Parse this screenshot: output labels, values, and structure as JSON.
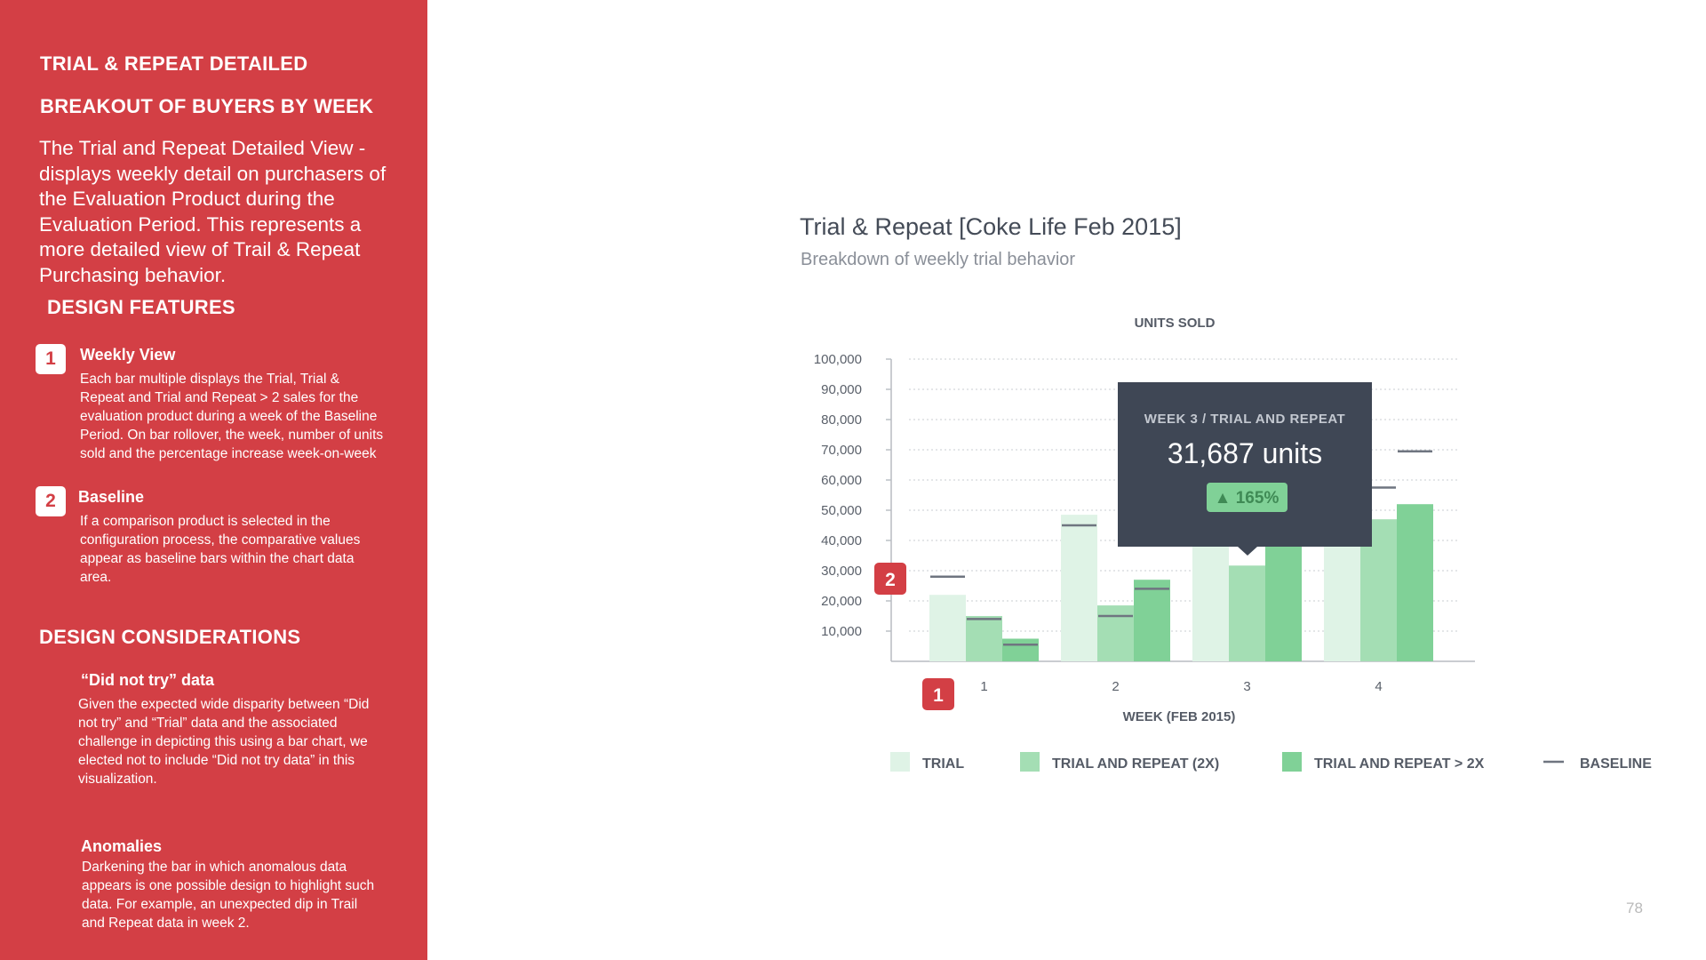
{
  "sidebar": {
    "heading1": "TRIAL & REPEAT DETAILED",
    "heading2": "BREAKOUT OF BUYERS BY WEEK",
    "intro": "The Trial and Repeat Detailed View - displays weekly detail on purchasers of the Evaluation Product during the Evaluation Period.  This represents a more detailed view of Trail & Repeat Purchasing behavior.",
    "design_features_heading": "DESIGN FEATURES",
    "features": [
      {
        "badge": "1",
        "title": "Weekly View",
        "desc": "Each bar multiple displays the Trial, Trial & Repeat and Trial and Repeat > 2 sales for the evaluation product during a week of the Baseline Period.  On bar rollover, the week, number of units sold and the percentage increase week-on-week"
      },
      {
        "badge": "2",
        "title": "Baseline",
        "desc": "If a comparison product is selected in the configuration process, the comparative values appear as baseline bars within the chart data area."
      }
    ],
    "design_considerations_heading": "DESIGN CONSIDERATIONS",
    "considerations": [
      {
        "title": "“Did not try” data",
        "desc": "Given the expected wide disparity between “Did not try” and “Trial” data and the associated challenge in depicting this using a bar chart, we elected not to include “Did not try data” in this visualization."
      },
      {
        "title": "Anomalies",
        "desc": "Darkening the bar in which anomalous data appears is one possible design to highlight such data.  For example, an unexpected dip in Trail and Repeat data in week 2."
      }
    ]
  },
  "chart_data": {
    "type": "bar",
    "title": "Trial & Repeat [Coke Life Feb 2015]",
    "subtitle": "Breakdown of weekly trial behavior",
    "ylabel": "UNITS SOLD",
    "xlabel": "WEEK (FEB 2015)",
    "categories": [
      "1",
      "2",
      "3",
      "4"
    ],
    "ylim": [
      0,
      100000
    ],
    "yticks": [
      10000,
      20000,
      30000,
      40000,
      50000,
      60000,
      70000,
      80000,
      90000,
      100000
    ],
    "ytick_labels": [
      "10,000",
      "20,000",
      "30,000",
      "40,000",
      "50,000",
      "60,000",
      "70,000",
      "80,000",
      "90,000",
      "100,000"
    ],
    "grid": true,
    "legend_position": "bottom",
    "series": [
      {
        "name": "TRIAL",
        "color": "#dff3e6",
        "values": [
          22000,
          48500,
          38000,
          38000
        ],
        "baseline": [
          28000,
          45000,
          null,
          null
        ]
      },
      {
        "name": "TRIAL AND REPEAT (2X)",
        "color": "#a4deb4",
        "values": [
          15000,
          18500,
          31687,
          47000
        ],
        "baseline": [
          14000,
          15000,
          null,
          57500
        ]
      },
      {
        "name": "TRIAL AND REPEAT > 2X",
        "color": "#80d197",
        "values": [
          7500,
          27000,
          38000,
          52000
        ],
        "baseline": [
          5500,
          24000,
          null,
          69500
        ]
      }
    ],
    "baseline_legend": "BASELINE",
    "baseline_color": "#6f7580",
    "tooltip": {
      "label": "WEEK 3 / TRIAL AND REPEAT",
      "value": "31,687 units",
      "change": "▲ 165%"
    },
    "callouts": [
      {
        "label": "2"
      },
      {
        "label": "1"
      }
    ]
  },
  "page_number": "78"
}
